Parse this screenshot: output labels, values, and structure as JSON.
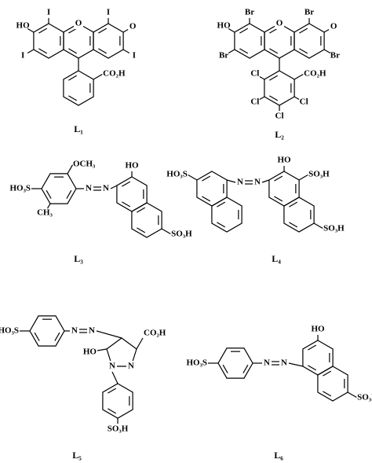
{
  "molecules": [
    {
      "atoms": [
        "HO",
        "I",
        "O",
        "I",
        "O",
        "I",
        "I",
        "CO₂H"
      ],
      "label": "L₁"
    },
    {
      "atoms": [
        "HO",
        "Br",
        "O",
        "Br",
        "O",
        "Br",
        "Br",
        "Cl",
        "CO₂H",
        "Cl",
        "Cl",
        "Cl"
      ],
      "label": "L₂"
    },
    {
      "atoms": [
        "OCH₃",
        "HO",
        "HO₃S",
        "N",
        "N",
        "CH₃",
        "SO₃H"
      ],
      "label": "L₃"
    },
    {
      "atoms": [
        "HO",
        "SO₃H",
        "HO₃S",
        "N",
        "N",
        "SO₃H"
      ],
      "label": "L₄"
    },
    {
      "atoms": [
        "HO₃S",
        "N",
        "N",
        "CO₂H",
        "HO",
        "N",
        "N",
        "SO₃H"
      ],
      "label": "L₅"
    },
    {
      "atoms": [
        "HO",
        "HO₃S",
        "N",
        "N",
        "SO₃H"
      ],
      "label": "L₆"
    }
  ]
}
